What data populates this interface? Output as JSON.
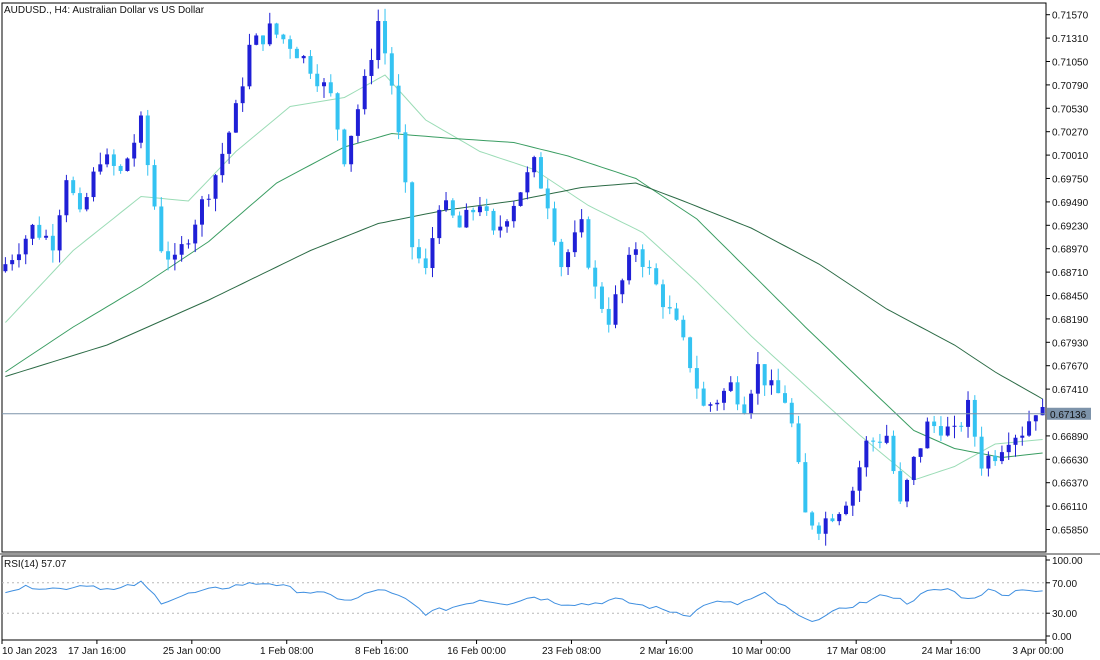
{
  "window": {
    "title": "AUDUSD., H4:  Australian Dollar vs US Dollar"
  },
  "colors": {
    "bull": "#1f1fd6",
    "bear": "#34c3f2",
    "ma_fast": "#9bdcb6",
    "ma_mid": "#3a9d62",
    "ma_slow": "#2c6b46",
    "rsi_line": "#3f8fe0",
    "price_line": "#7d93aa",
    "axis": "#000000"
  },
  "chart_data": [
    {
      "type": "candlestick",
      "title": "AUDUSD., H4:  Australian Dollar vs US Dollar",
      "ylim": [
        0.656,
        0.717
      ],
      "y_ticks": [
        "0.71570",
        "0.71310",
        "0.71050",
        "0.70790",
        "0.70530",
        "0.70270",
        "0.70010",
        "0.69750",
        "0.69490",
        "0.69230",
        "0.68970",
        "0.68710",
        "0.68450",
        "0.68190",
        "0.67930",
        "0.67670",
        "0.67410",
        "0.66890",
        "0.66630",
        "0.66370",
        "0.66110",
        "0.65850"
      ],
      "current_price": "0.67136",
      "x_labels": [
        "10 Jan 2023",
        "17 Jan 16:00",
        "25 Jan 00:00",
        "1 Feb 08:00",
        "8 Feb 16:00",
        "16 Feb 00:00",
        "23 Feb 08:00",
        "2 Mar 16:00",
        "10 Mar 00:00",
        "17 Mar 08:00",
        "24 Mar 16:00",
        "3 Apr 00:00"
      ],
      "close_path": [
        [
          0,
          0.688
        ],
        [
          4,
          0.692
        ],
        [
          7,
          0.6905
        ],
        [
          9,
          0.698
        ],
        [
          11,
          0.693
        ],
        [
          14,
          0.7
        ],
        [
          17,
          0.698
        ],
        [
          20,
          0.7035
        ],
        [
          23,
          0.69
        ],
        [
          25,
          0.688
        ],
        [
          28,
          0.693
        ],
        [
          31,
          0.698
        ],
        [
          34,
          0.705
        ],
        [
          36,
          0.712
        ],
        [
          39,
          0.714
        ],
        [
          42,
          0.7125
        ],
        [
          45,
          0.71
        ],
        [
          48,
          0.7065
        ],
        [
          50,
          0.7
        ],
        [
          53,
          0.708
        ],
        [
          55,
          0.715
        ],
        [
          57,
          0.708
        ],
        [
          60,
          0.69
        ],
        [
          62,
          0.687
        ],
        [
          64,
          0.695
        ],
        [
          67,
          0.692
        ],
        [
          70,
          0.695
        ],
        [
          72,
          0.691
        ],
        [
          75,
          0.695
        ],
        [
          78,
          0.699
        ],
        [
          80,
          0.695
        ],
        [
          82,
          0.688
        ],
        [
          85,
          0.692
        ],
        [
          87,
          0.685
        ],
        [
          89,
          0.682
        ],
        [
          91,
          0.686
        ],
        [
          93,
          0.69
        ],
        [
          95,
          0.687
        ],
        [
          97,
          0.684
        ],
        [
          99,
          0.681
        ],
        [
          101,
          0.677
        ],
        [
          103,
          0.672
        ],
        [
          105,
          0.673
        ],
        [
          107,
          0.6745
        ],
        [
          109,
          0.6725
        ],
        [
          111,
          0.6765
        ],
        [
          113,
          0.674
        ],
        [
          115,
          0.673
        ],
        [
          116,
          0.67
        ],
        [
          118,
          0.66
        ],
        [
          120,
          0.659
        ],
        [
          123,
          0.661
        ],
        [
          125,
          0.663
        ],
        [
          127,
          0.668
        ],
        [
          130,
          0.669
        ],
        [
          132,
          0.661
        ],
        [
          134,
          0.666
        ],
        [
          136,
          0.67
        ],
        [
          138,
          0.67
        ],
        [
          140,
          0.669
        ],
        [
          142,
          0.672
        ],
        [
          144,
          0.666
        ],
        [
          146,
          0.667
        ],
        [
          148,
          0.669
        ],
        [
          150,
          0.6695
        ],
        [
          152,
          0.672
        ],
        [
          153,
          0.6713
        ]
      ],
      "ma_fast": [
        [
          0,
          0.6815
        ],
        [
          10,
          0.6895
        ],
        [
          20,
          0.6955
        ],
        [
          27,
          0.695
        ],
        [
          34,
          0.7005
        ],
        [
          42,
          0.7055
        ],
        [
          50,
          0.7065
        ],
        [
          56,
          0.709
        ],
        [
          62,
          0.704
        ],
        [
          70,
          0.7005
        ],
        [
          78,
          0.6985
        ],
        [
          86,
          0.6945
        ],
        [
          94,
          0.6915
        ],
        [
          102,
          0.686
        ],
        [
          110,
          0.68
        ],
        [
          118,
          0.6745
        ],
        [
          126,
          0.669
        ],
        [
          134,
          0.664
        ],
        [
          140,
          0.6655
        ],
        [
          146,
          0.668
        ],
        [
          153,
          0.6685
        ]
      ],
      "ma_mid": [
        [
          0,
          0.676
        ],
        [
          10,
          0.681
        ],
        [
          20,
          0.6855
        ],
        [
          30,
          0.6905
        ],
        [
          40,
          0.697
        ],
        [
          50,
          0.701
        ],
        [
          57,
          0.7025
        ],
        [
          65,
          0.702
        ],
        [
          75,
          0.7015
        ],
        [
          83,
          0.7
        ],
        [
          93,
          0.6975
        ],
        [
          102,
          0.693
        ],
        [
          110,
          0.687
        ],
        [
          118,
          0.681
        ],
        [
          127,
          0.6745
        ],
        [
          134,
          0.6695
        ],
        [
          140,
          0.6675
        ],
        [
          147,
          0.6665
        ],
        [
          153,
          0.667
        ]
      ],
      "ma_slow": [
        [
          0,
          0.6755
        ],
        [
          15,
          0.679
        ],
        [
          30,
          0.684
        ],
        [
          45,
          0.6895
        ],
        [
          55,
          0.6925
        ],
        [
          65,
          0.694
        ],
        [
          75,
          0.695
        ],
        [
          85,
          0.6965
        ],
        [
          93,
          0.697
        ],
        [
          100,
          0.695
        ],
        [
          110,
          0.692
        ],
        [
          120,
          0.688
        ],
        [
          130,
          0.683
        ],
        [
          140,
          0.679
        ],
        [
          146,
          0.676
        ],
        [
          153,
          0.673
        ]
      ]
    },
    {
      "type": "line",
      "title": "RSI(14) 57.07",
      "ylim": [
        0,
        100
      ],
      "y_ticks": [
        "100.00",
        "70.00",
        "30.00",
        "0.00"
      ],
      "levels": [
        70,
        30
      ],
      "rsi_path": [
        [
          0,
          60
        ],
        [
          4,
          65
        ],
        [
          8,
          62
        ],
        [
          12,
          68
        ],
        [
          16,
          60
        ],
        [
          20,
          70
        ],
        [
          23,
          45
        ],
        [
          27,
          55
        ],
        [
          31,
          62
        ],
        [
          35,
          68
        ],
        [
          39,
          70
        ],
        [
          43,
          60
        ],
        [
          47,
          55
        ],
        [
          51,
          46
        ],
        [
          55,
          62
        ],
        [
          59,
          48
        ],
        [
          62,
          30
        ],
        [
          66,
          38
        ],
        [
          70,
          48
        ],
        [
          74,
          43
        ],
        [
          78,
          52
        ],
        [
          82,
          43
        ],
        [
          86,
          42
        ],
        [
          90,
          48
        ],
        [
          94,
          40
        ],
        [
          98,
          33
        ],
        [
          101,
          28
        ],
        [
          104,
          45
        ],
        [
          108,
          42
        ],
        [
          112,
          55
        ],
        [
          116,
          32
        ],
        [
          118,
          20
        ],
        [
          121,
          26
        ],
        [
          124,
          38
        ],
        [
          127,
          45
        ],
        [
          130,
          55
        ],
        [
          133,
          44
        ],
        [
          136,
          58
        ],
        [
          139,
          62
        ],
        [
          142,
          48
        ],
        [
          145,
          60
        ],
        [
          148,
          55
        ],
        [
          150,
          63
        ],
        [
          153,
          57
        ]
      ]
    }
  ]
}
